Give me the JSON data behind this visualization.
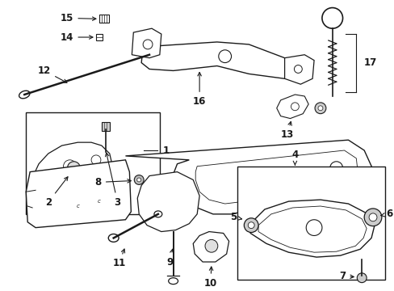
{
  "bg_color": "#ffffff",
  "fig_width": 4.89,
  "fig_height": 3.6,
  "dpi": 100,
  "line_color": "#1a1a1a",
  "label_color": "#111111"
}
